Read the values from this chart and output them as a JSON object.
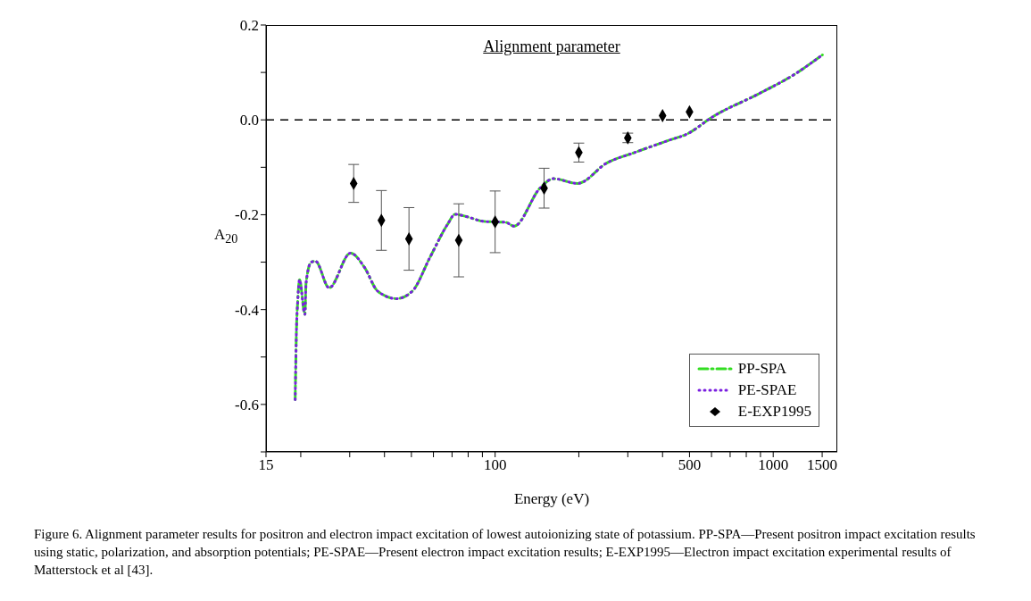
{
  "chart_data": {
    "type": "line",
    "title": "Alignment parameter",
    "xlabel": "Energy (eV)",
    "ylabel": "A$_{20}$",
    "log": "x",
    "grid": false,
    "legend": "bottom right",
    "marker": "none",
    "xlim": [
      15,
      1700
    ],
    "xticks": [
      15,
      {
        "value": 20,
        "label": null
      },
      {
        "value": 30,
        "label": null
      },
      {
        "value": 40,
        "label": null
      },
      {
        "value": 50,
        "label": null
      },
      {
        "value": 60,
        "label": null
      },
      {
        "value": 70,
        "label": null
      },
      {
        "value": 80,
        "label": null
      },
      {
        "value": 90,
        "label": null
      },
      100,
      {
        "value": 200,
        "label": null
      },
      {
        "value": 300,
        "label": null
      },
      {
        "value": 400,
        "label": null
      },
      500,
      {
        "value": 600,
        "label": null
      },
      {
        "value": 700,
        "label": null
      },
      {
        "value": 800,
        "label": null
      },
      {
        "value": 900,
        "label": null
      },
      1000,
      1500
    ],
    "ylim": [
      -0.7,
      0.2
    ],
    "yticks": [
      {
        "value": -0.7,
        "label": null
      },
      -0.6,
      {
        "value": -0.5,
        "label": null
      },
      -0.4,
      {
        "value": -0.3,
        "label": null
      },
      -0.2,
      {
        "value": -0.1,
        "label": null
      },
      {
        "value": 0,
        "label": "0.0"
      },
      {
        "value": 0.1,
        "label": null
      },
      0.2
    ],
    "ref_lines": [
      {
        "axis": "y",
        "value": 0,
        "line_style": "dashed",
        "color": "#000000"
      }
    ],
    "series": [
      {
        "name": "PP-SPA",
        "color": "#33dd22",
        "line_style": "dashed",
        "x": [
          19.1,
          19.2,
          19.3,
          19.5,
          19.8,
          20.7,
          20.9,
          21.8,
          22.6,
          25.3,
          30.2,
          33.9,
          37.8,
          44.2,
          50.4,
          58.3,
          67.5,
          71.8,
          78.9,
          91,
          109,
          117,
          145,
          162,
          198,
          252,
          317,
          417,
          493,
          604,
          894,
          1193,
          1503
        ],
        "values": [
          -0.59,
          -0.51,
          -0.444,
          -0.384,
          -0.337,
          -0.41,
          -0.344,
          -0.3,
          -0.298,
          -0.354,
          -0.281,
          -0.311,
          -0.361,
          -0.377,
          -0.361,
          -0.29,
          -0.22,
          -0.199,
          -0.204,
          -0.214,
          -0.216,
          -0.224,
          -0.144,
          -0.124,
          -0.134,
          -0.091,
          -0.069,
          -0.044,
          -0.029,
          0.006,
          0.056,
          0.096,
          0.137
        ]
      },
      {
        "name": "PE-SPAE",
        "color": "#7a1fe0",
        "line_style": "dotted",
        "x": [
          19.1,
          19.2,
          19.3,
          19.5,
          19.8,
          20.7,
          20.9,
          21.8,
          22.6,
          25.3,
          30.2,
          33.9,
          37.8,
          44.2,
          50.4,
          58.3,
          67.5,
          71.8,
          78.9,
          91,
          109,
          117,
          145,
          162,
          198,
          252,
          317,
          417,
          493,
          604,
          894,
          1193,
          1503
        ],
        "values": [
          -0.59,
          -0.51,
          -0.444,
          -0.384,
          -0.337,
          -0.41,
          -0.344,
          -0.3,
          -0.298,
          -0.354,
          -0.281,
          -0.311,
          -0.361,
          -0.377,
          -0.361,
          -0.29,
          -0.22,
          -0.199,
          -0.204,
          -0.214,
          -0.216,
          -0.224,
          -0.144,
          -0.124,
          -0.134,
          -0.091,
          -0.069,
          -0.044,
          -0.029,
          0.006,
          0.056,
          0.096,
          0.137
        ]
      },
      {
        "name": "E-EXP1995",
        "type": "scatter",
        "color": "#000000",
        "marker": "diamond",
        "x": [
          31,
          39,
          49,
          74,
          100,
          150,
          200,
          300,
          400,
          500
        ],
        "values": [
          -0.134,
          -0.212,
          -0.251,
          -0.254,
          -0.215,
          -0.144,
          -0.069,
          -0.038,
          0.009,
          0.017
        ],
        "errors": [
          0.04,
          0.063,
          0.066,
          0.077,
          0.065,
          0.042,
          0.02,
          0.01,
          null,
          null
        ]
      }
    ],
    "annotations": [
      "Figure 6. Alignment parameter results for positron and electron impact excitation of lowest autoionizing state of potassium. PP-SPA—Present positron impact excitation results using static, polarization, and absorption potentials; PE-SPAE—Present electron impact excitation results; E-EXP1995—Electron impact excitation experimental results of Matterstock et al [43]."
    ]
  }
}
